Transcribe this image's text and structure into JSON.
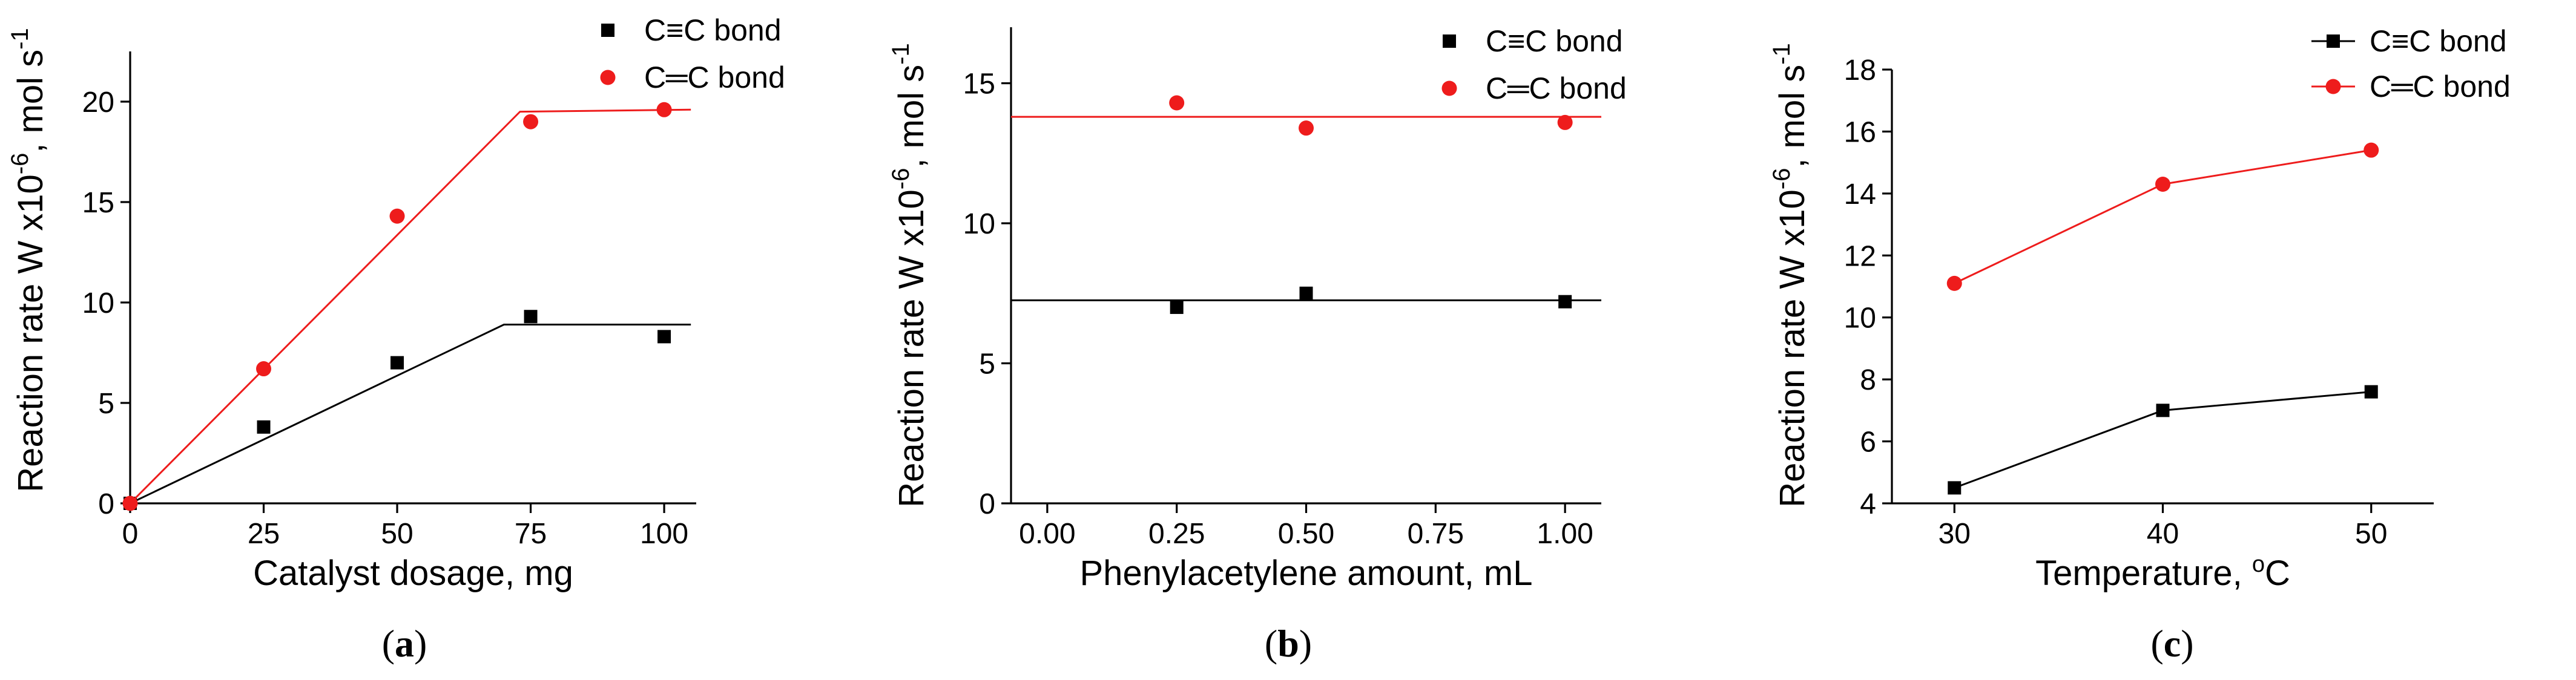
{
  "figure": {
    "panel_labels": [
      {
        "open": "(",
        "letter": "a",
        "close": ")"
      },
      {
        "open": "(",
        "letter": "b",
        "close": ")"
      },
      {
        "open": "(",
        "letter": "c",
        "close": ")"
      }
    ]
  },
  "colors": {
    "black_series": "#000000",
    "red_series": "#ee1c1c"
  },
  "chart_data": [
    {
      "type": "scatter",
      "panel": "a",
      "title": "",
      "xlabel": "Catalyst dosage, mg",
      "ylabel": {
        "main": "Reaction rate W x10",
        "exp": "-6",
        "unit": ", mol s",
        "unit_exp": "-1"
      },
      "xlim": [
        0,
        106
      ],
      "ylim": [
        0,
        22.5
      ],
      "xticks": [
        0,
        25,
        50,
        75,
        100
      ],
      "xtick_labels": [
        "0",
        "25",
        "50",
        "75",
        "100"
      ],
      "yticks": [
        0,
        5,
        10,
        15,
        20
      ],
      "ytick_labels": [
        "0",
        "5",
        "10",
        "15",
        "20"
      ],
      "legend_position": "top-right",
      "series": [
        {
          "name": "C≡C bond",
          "color": "#000000",
          "marker": "square",
          "x": [
            0,
            25,
            50,
            75,
            100
          ],
          "y": [
            0,
            3.8,
            7.0,
            9.3,
            8.3
          ],
          "fit_line": {
            "x": [
              0,
              70,
              105
            ],
            "y": [
              0,
              8.9,
              8.9
            ]
          }
        },
        {
          "name": "C═C bond",
          "color": "#ee1c1c",
          "marker": "circle",
          "x": [
            0,
            25,
            50,
            75,
            100
          ],
          "y": [
            0,
            6.7,
            14.3,
            19.0,
            19.6
          ],
          "fit_line": {
            "x": [
              0,
              73,
              105
            ],
            "y": [
              0,
              19.5,
              19.6
            ]
          }
        }
      ]
    },
    {
      "type": "scatter",
      "panel": "b",
      "title": "",
      "xlabel": "Phenylacetylene amount, mL",
      "ylabel": {
        "main": "Reaction rate W x10",
        "exp": "-6",
        "unit": ", mol s",
        "unit_exp": "-1"
      },
      "xlim": [
        -0.07,
        1.07
      ],
      "ylim": [
        0,
        17
      ],
      "xticks": [
        0,
        0.25,
        0.5,
        0.75,
        1.0
      ],
      "xtick_labels": [
        "0.00",
        "0.25",
        "0.50",
        "0.75",
        "1.00"
      ],
      "yticks": [
        0,
        5,
        10,
        15
      ],
      "ytick_labels": [
        "0",
        "5",
        "10",
        "15"
      ],
      "legend_position": "top-right",
      "series": [
        {
          "name": "C≡C bond",
          "color": "#000000",
          "marker": "square",
          "x": [
            0.25,
            0.5,
            1.0
          ],
          "y": [
            7.0,
            7.5,
            7.2
          ],
          "fit_line": {
            "x": [
              -0.07,
              1.07
            ],
            "y": [
              7.25,
              7.25
            ]
          }
        },
        {
          "name": "C═C bond",
          "color": "#ee1c1c",
          "marker": "circle",
          "x": [
            0.25,
            0.5,
            1.0
          ],
          "y": [
            14.3,
            13.4,
            13.6
          ],
          "fit_line": {
            "x": [
              -0.07,
              1.07
            ],
            "y": [
              13.8,
              13.8
            ]
          }
        }
      ]
    },
    {
      "type": "line",
      "panel": "c",
      "title": "",
      "xlabel": {
        "main": "Temperature, ",
        "sup": "o",
        "unit": "C"
      },
      "ylabel": {
        "main": "Reaction rate W x10",
        "exp": "-6",
        "unit": ", mol s",
        "unit_exp": "-1"
      },
      "xlim": [
        27,
        53
      ],
      "ylim": [
        4,
        18
      ],
      "xticks": [
        30,
        40,
        50
      ],
      "xtick_labels": [
        "30",
        "40",
        "50"
      ],
      "yticks": [
        4,
        6,
        8,
        10,
        12,
        14,
        16,
        18
      ],
      "ytick_labels": [
        "4",
        "6",
        "8",
        "10",
        "12",
        "14",
        "16",
        "18"
      ],
      "legend_position": "top-right",
      "series": [
        {
          "name": "C≡C bond",
          "color": "#000000",
          "marker": "square",
          "x": [
            30,
            40,
            50
          ],
          "y": [
            4.5,
            7.0,
            7.6
          ]
        },
        {
          "name": "C═C bond",
          "color": "#ee1c1c",
          "marker": "circle",
          "x": [
            30,
            40,
            50
          ],
          "y": [
            11.1,
            14.3,
            15.4
          ]
        }
      ]
    }
  ]
}
